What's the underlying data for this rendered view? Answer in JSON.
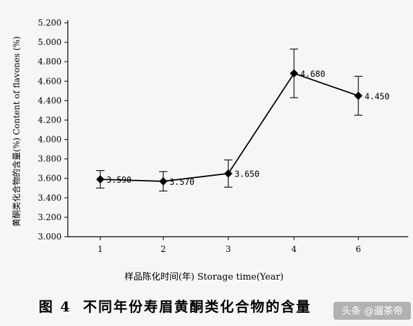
{
  "chart_data": {
    "type": "line",
    "categories": [
      "1",
      "2",
      "3",
      "4",
      "6"
    ],
    "series": [
      {
        "values": [
          3.59,
          3.57,
          3.65,
          4.68,
          4.45
        ],
        "errors": [
          0.09,
          0.1,
          0.14,
          0.25,
          0.2
        ],
        "data_labels": [
          "3.590",
          "3.570",
          "3.650",
          "4.680",
          "4.450"
        ],
        "color": "#000000",
        "marker": "diamond"
      }
    ],
    "ylim": [
      3.0,
      5.2
    ],
    "yticks": [
      "3.000",
      "3.200",
      "3.400",
      "3.600",
      "3.800",
      "4.000",
      "4.200",
      "4.400",
      "4.600",
      "4.800",
      "5.000",
      "5.200"
    ],
    "xlabel": "样品陈化时间(年) Storage time(Year)",
    "ylabel": "黄酮类化合物的含量(%) Content of flavones (%)",
    "grid": false,
    "legend": "none"
  },
  "caption": {
    "figure_number": "图 4",
    "title": "不同年份寿眉黄酮类化合物的含量"
  },
  "watermark": {
    "text": "头条 @遛茶帝"
  }
}
